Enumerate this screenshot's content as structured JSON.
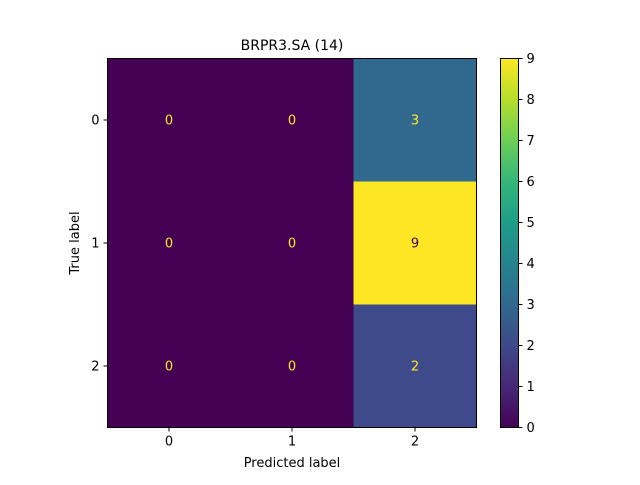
{
  "chart_data": {
    "type": "heatmap",
    "title": "BRPR3.SA (14)",
    "xlabel": "Predicted label",
    "ylabel": "True label",
    "x_categories": [
      "0",
      "1",
      "2"
    ],
    "y_categories": [
      "0",
      "1",
      "2"
    ],
    "values": [
      [
        0,
        0,
        3
      ],
      [
        0,
        0,
        9
      ],
      [
        0,
        0,
        2
      ]
    ],
    "colormap": "viridis",
    "colorbar": {
      "min": 0,
      "max": 9,
      "ticks": [
        "0",
        "1",
        "2",
        "3",
        "4",
        "5",
        "6",
        "7",
        "8",
        "9"
      ]
    },
    "grid": false
  },
  "colors": {
    "viridis_low": "#440154",
    "viridis_high": "#fde725",
    "text_on_dark": "#fde725",
    "text_on_light": "#440154"
  }
}
